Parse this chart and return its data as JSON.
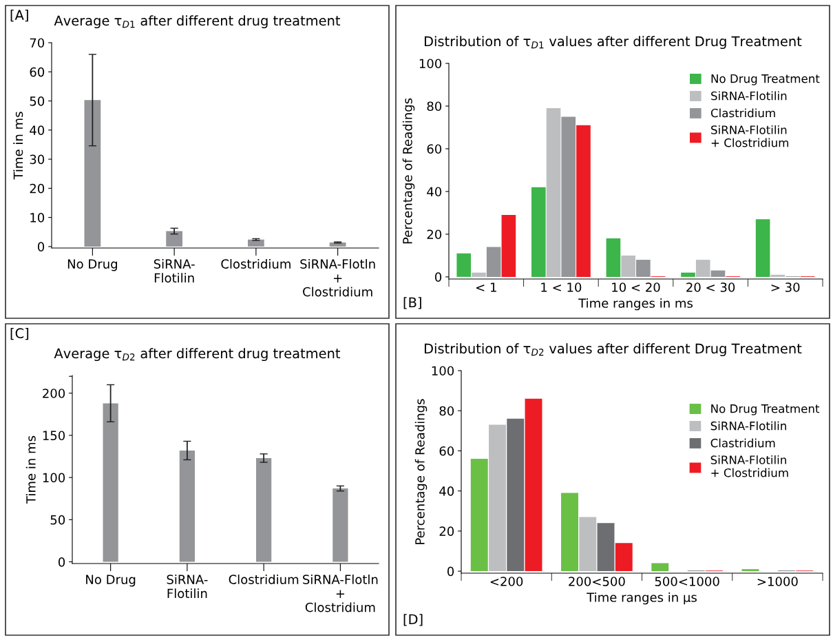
{
  "chart_data": [
    {
      "type": "bar",
      "title": "Average τ$_{D1}$ after different drug treatment",
      "ylabel": "Time in ms",
      "annotations": [
        "[A]"
      ],
      "categories": [
        "No Drug",
        "SiRNA-\nFlotilin",
        "Clostridium",
        "SiRNA-Flotln\n+\nClostridium"
      ],
      "values": [
        50.3,
        5.3,
        2.4,
        1.4
      ],
      "errors": [
        15.7,
        1.0,
        0.3,
        0.2
      ],
      "color": "#939598",
      "ylim": [
        -0.5,
        70
      ],
      "yticks": [
        0,
        10,
        20,
        30,
        40,
        50,
        60,
        70
      ],
      "grid": false,
      "legend": false
    },
    {
      "type": "bar",
      "title": "Distribution of τ$_{D1}$ values after different Drug Treatment",
      "xlabel": "Time ranges in ms",
      "ylabel": "Percentage of Readings",
      "annotations": [
        "[B]"
      ],
      "categories": [
        "< 1",
        "1 < 10",
        "10 < 20",
        "20 < 30",
        "> 30"
      ],
      "series": [
        {
          "name": "No Drug Treatment",
          "color": "#3cb54a",
          "values": [
            11,
            42,
            18,
            2,
            27
          ]
        },
        {
          "name": "SiRNA-Flotilin",
          "color": "#bcbec0",
          "values": [
            2,
            79,
            10,
            8,
            1
          ]
        },
        {
          "name": "Clastridium",
          "color": "#939598",
          "values": [
            14,
            75,
            8,
            3,
            0.3
          ]
        },
        {
          "name": "SiRNA-Flotilin\n+ Clostridium",
          "color": "#ed1c24",
          "values": [
            29,
            71,
            0.3,
            0.3,
            0.3
          ]
        }
      ],
      "ylim": [
        -1,
        100
      ],
      "yticks": [
        0,
        20,
        40,
        60,
        80,
        100
      ],
      "grid": false,
      "legend": "top right"
    },
    {
      "type": "bar",
      "title": "Average τ$_{D2}$ after different drug treatment",
      "ylabel": "Time in ms",
      "annotations": [
        "[C]"
      ],
      "categories": [
        "No Drug",
        "SiRNA-\nFlotilin",
        "Clostridium",
        "SiRNA-Flotln\n+\nClostridium"
      ],
      "values": [
        188,
        132,
        123,
        87
      ],
      "errors": [
        22,
        11,
        5,
        3
      ],
      "color": "#939598",
      "ylim": [
        -2,
        221
      ],
      "yticks": [
        0,
        50,
        100,
        150,
        200,
        {
          "value": 220,
          "label": null
        }
      ],
      "grid": false,
      "legend": false
    },
    {
      "type": "bar",
      "title": "Distribution of τ$_{D2}$ values after different Drug Treatment",
      "xlabel": "Time ranges in µs",
      "ylabel": "Percentage of Readings",
      "annotations": [
        "[D]"
      ],
      "categories": [
        "<200",
        "200<500",
        "500<1000",
        ">1000"
      ],
      "series": [
        {
          "name": "No Drug Treatment",
          "color": "#6abf45",
          "values": [
            56,
            39,
            4,
            1
          ]
        },
        {
          "name": "SiRNA-Flotilin",
          "color": "#bcbec0",
          "values": [
            73,
            27,
            null,
            null
          ]
        },
        {
          "name": "Clastridium",
          "color": "#6d6e71",
          "values": [
            76,
            24,
            0.3,
            0.3
          ]
        },
        {
          "name": "SiRNA-Flotilin\n+ Clostridium",
          "color": "#ed1c24",
          "values": [
            86,
            14,
            0.3,
            0.3
          ]
        }
      ],
      "ylim": [
        -1,
        100
      ],
      "yticks": [
        0,
        20,
        40,
        60,
        80,
        100
      ],
      "grid": false,
      "legend": "right"
    }
  ]
}
